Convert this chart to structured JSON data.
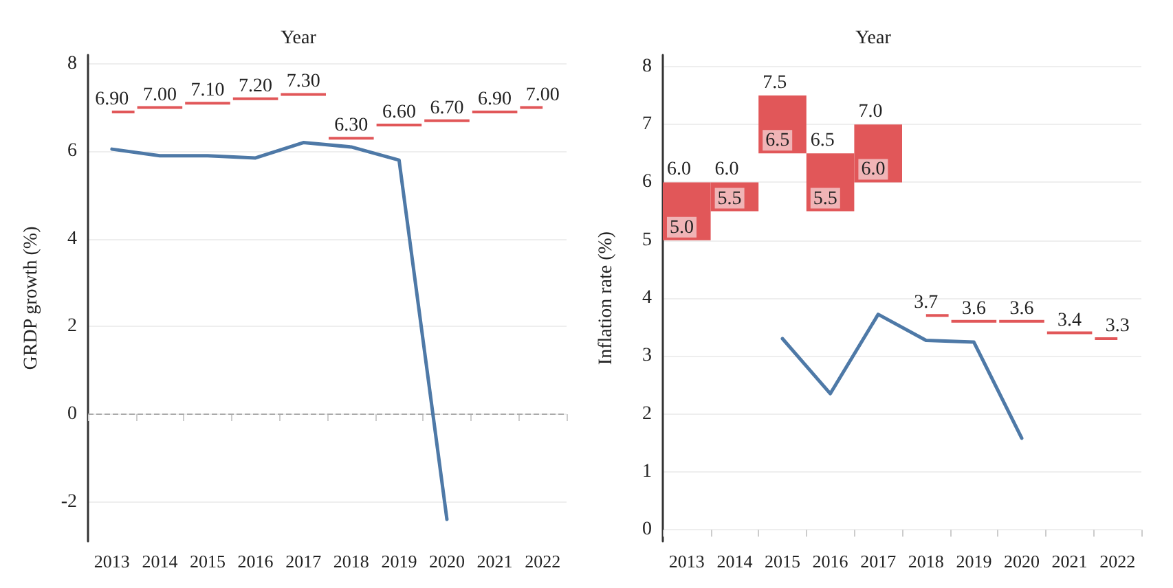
{
  "chart_data": [
    {
      "type": "line",
      "xlabel": "Year",
      "ylabel": "GRDP growth (%)",
      "categories": [
        "2013",
        "2014",
        "2015",
        "2016",
        "2017",
        "2018",
        "2019",
        "2020",
        "2021",
        "2022"
      ],
      "series": [
        {
          "color": "#4e79a7",
          "values": [
            6.05,
            5.9,
            5.9,
            5.85,
            6.2,
            6.1,
            5.8,
            -2.4,
            null,
            null
          ]
        },
        {
          "type": "step",
          "color": "#e15759",
          "values": [
            6.9,
            7.0,
            7.1,
            7.2,
            7.3,
            6.3,
            6.6,
            6.7,
            6.9,
            7.0
          ],
          "value_labels": [
            "6.90",
            "7.00",
            "7.10",
            "7.20",
            "7.30",
            "6.30",
            "6.60",
            "6.70",
            "6.90",
            "7.00"
          ]
        }
      ],
      "ylim": [
        -2.9,
        8.2
      ],
      "yticks": [
        -2,
        0,
        2,
        4,
        6,
        8
      ],
      "grid": "y",
      "ref_lines": [
        {
          "axis": "y",
          "value": 0,
          "color": "#aaaaaa",
          "line_style": "dashed"
        }
      ]
    },
    {
      "type": "line",
      "xlabel": "Year",
      "ylabel": "Inflation rate (%)",
      "categories": [
        "2013",
        "2014",
        "2015",
        "2016",
        "2017",
        "2018",
        "2019",
        "2020",
        "2021",
        "2022"
      ],
      "series": [
        {
          "type": "bar",
          "color": "#e15759",
          "base": [
            5.0,
            5.5,
            6.5,
            5.5,
            6.0,
            null,
            null,
            null,
            null,
            null
          ],
          "values": [
            1.0,
            0.5,
            1.0,
            1.0,
            1.0,
            null,
            null,
            null,
            null,
            null
          ]
        },
        {
          "type": "step",
          "color": "#e15759",
          "values": [
            null,
            null,
            null,
            null,
            null,
            3.7,
            3.6,
            3.6,
            3.4,
            3.3
          ],
          "value_labels": [
            null,
            null,
            null,
            null,
            null,
            "3.7",
            "3.6",
            "3.6",
            "3.4",
            "3.3"
          ]
        },
        {
          "color": "#4e79a7",
          "values": [
            null,
            null,
            3.3,
            2.35,
            3.72,
            3.27,
            3.24,
            1.58,
            null,
            null
          ]
        }
      ],
      "annotations": [
        {
          "text": "6.0",
          "x": "2013",
          "y": 6.0
        },
        {
          "text": "5.0",
          "x": "2013",
          "y": 5.0
        },
        {
          "text": "6.0",
          "x": "2014",
          "y": 6.0
        },
        {
          "text": "5.5",
          "x": "2014",
          "y": 5.5
        },
        {
          "text": "7.5",
          "x": "2015",
          "y": 7.5
        },
        {
          "text": "6.5",
          "x": "2015",
          "y": 6.5
        },
        {
          "text": "6.5",
          "x": "2016",
          "y": 6.5
        },
        {
          "text": "5.5",
          "x": "2016",
          "y": 5.5
        },
        {
          "text": "7.0",
          "x": "2017",
          "y": 7.0
        },
        {
          "text": "6.0",
          "x": "2017",
          "y": 6.0
        }
      ],
      "ylim": [
        -0.2,
        8.2
      ],
      "yticks": [
        0,
        1,
        2,
        3,
        4,
        5,
        6,
        7,
        8
      ],
      "grid": "y"
    }
  ]
}
